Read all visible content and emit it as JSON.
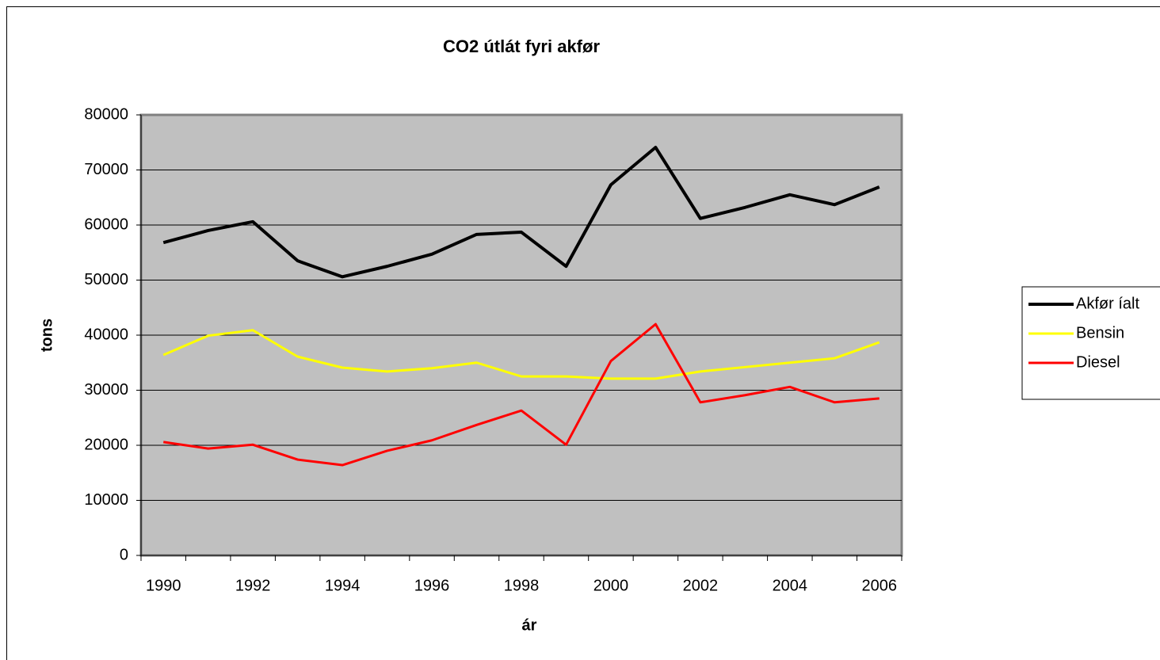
{
  "chart_data": {
    "type": "line",
    "title": "CO2 útlát fyri akfør",
    "x_label": "ár",
    "y_label": "tons",
    "categories": [
      "1990",
      null,
      "1992",
      null,
      "1994",
      null,
      "1996",
      null,
      "1998",
      null,
      "2000",
      null,
      "2002",
      null,
      "2004",
      null,
      "2006"
    ],
    "series": [
      {
        "name": "Akfør íalt",
        "color": "#000000",
        "values": [
          56800,
          59000,
          60600,
          53500,
          50600,
          52500,
          54700,
          58300,
          58700,
          52500,
          67300,
          74100,
          61200,
          63200,
          65500,
          63700,
          66900
        ]
      },
      {
        "name": "Bensin",
        "color": "#ffff00",
        "values": [
          36400,
          39900,
          40900,
          36100,
          34100,
          33400,
          34000,
          35000,
          32500,
          32500,
          32100,
          32100,
          33400,
          34200,
          35000,
          35800,
          38700
        ]
      },
      {
        "name": "Diesel",
        "color": "#ff0000",
        "values": [
          20600,
          19400,
          20100,
          17400,
          16400,
          19000,
          20900,
          23700,
          26300,
          20100,
          35300,
          42000,
          27800,
          29100,
          30600,
          27800,
          28500
        ]
      }
    ],
    "ylim": [
      0,
      80000
    ],
    "yticks": [
      0,
      10000,
      20000,
      30000,
      40000,
      50000,
      60000,
      70000,
      80000
    ],
    "grid": true,
    "legend": "right",
    "background": "#c0c0c0"
  }
}
